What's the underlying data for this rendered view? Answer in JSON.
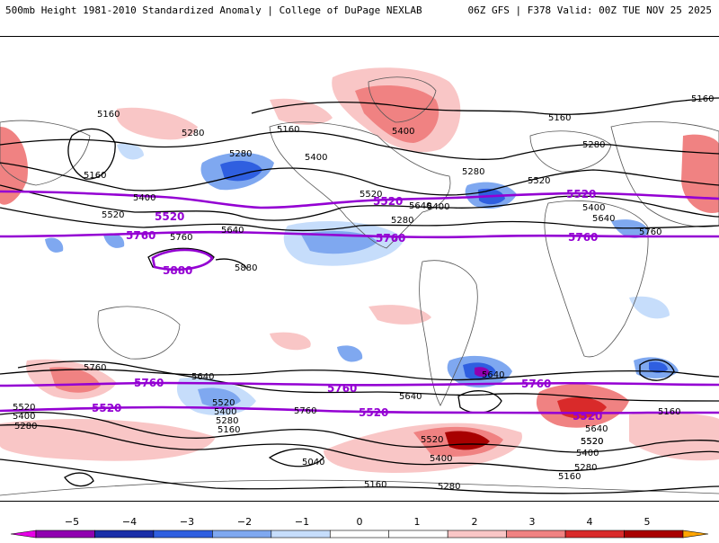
{
  "header": {
    "title_left": "500mb Height 1981-2010 Standardized Anomaly | College of DuPage NEXLAB",
    "title_right": "06Z GFS | F378 Valid: 00Z TUE NOV 25 2025"
  },
  "map": {
    "height_labels": [
      "5160",
      "5160",
      "5160",
      "5160",
      "5280",
      "5280",
      "5280",
      "5280",
      "5400",
      "5400",
      "5400",
      "5400",
      "5520",
      "5520",
      "5640",
      "5640",
      "5760",
      "5760",
      "5880",
      "5160",
      "5520",
      "5400",
      "5280",
      "5640",
      "5640",
      "5760",
      "5760",
      "5640",
      "5640",
      "5520",
      "5520",
      "5400",
      "5400",
      "5280",
      "5280",
      "5160",
      "5040",
      "5160",
      "5160",
      "5160",
      "5520",
      "5520",
      "5400",
      "5280",
      "5280",
      "5520",
      "5640",
      "5400",
      "5160",
      "5160"
    ],
    "highlight_labels": [
      "5520",
      "5520",
      "5520",
      "5760",
      "5760",
      "5760",
      "5880",
      "5760",
      "5760",
      "5760",
      "5520",
      "5520",
      "5520"
    ],
    "colors": {
      "height_contour": "#000000",
      "highlight_contour": "#9400d3",
      "pos1": "#f9c6c6",
      "pos2": "#f08282",
      "pos3": "#d92a2a",
      "pos4": "#a80000",
      "neg1": "#c6ddfb",
      "neg2": "#7fa8f0",
      "neg3": "#2f5fe0",
      "neg4": "#1a2ea8",
      "land_outline": "#555555"
    }
  },
  "colorbar": {
    "ticks": [
      "−5",
      "−4",
      "−3",
      "−2",
      "−1",
      "0",
      "1",
      "2",
      "3",
      "4",
      "5"
    ],
    "colors": [
      "#e600e6",
      "#9000b0",
      "#1a2ea8",
      "#2f5fe0",
      "#7fa8f0",
      "#c6ddfb",
      "#ffffff",
      "#ffffff",
      "#f9c6c6",
      "#f08282",
      "#d92a2a",
      "#a80000",
      "#ffa500"
    ]
  }
}
